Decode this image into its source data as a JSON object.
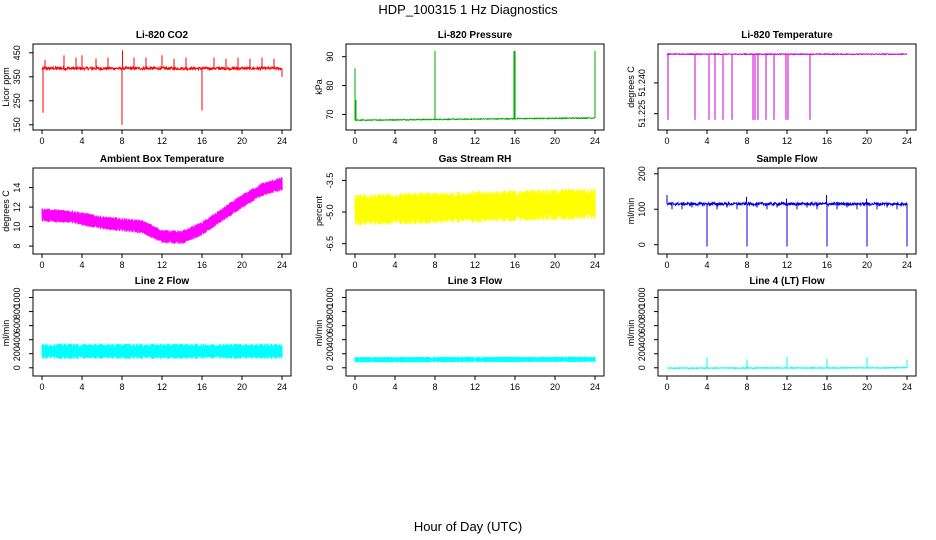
{
  "title": "HDP_100315  1 Hz Diagnostics",
  "xlabel": "Hour of Day (UTC)",
  "chart_data": [
    {
      "type": "line",
      "title": "Li-820 CO2",
      "ylabel": "Licor ppm",
      "color": "#ff0000",
      "xlim": [
        0,
        24
      ],
      "ylim": [
        145,
        470
      ],
      "xticks": [
        0,
        4,
        8,
        12,
        16,
        20,
        24
      ],
      "yticks": [
        150,
        250,
        350,
        450
      ],
      "baseline": 385,
      "noise": 6,
      "drift": 0,
      "spikes": [
        [
          0.1,
          200
        ],
        [
          0.3,
          420
        ],
        [
          2.2,
          440
        ],
        [
          3.4,
          430
        ],
        [
          4,
          440
        ],
        [
          5.4,
          425
        ],
        [
          6.6,
          430
        ],
        [
          8,
          150
        ],
        [
          8.05,
          460
        ],
        [
          9.2,
          430
        ],
        [
          10.4,
          430
        ],
        [
          12,
          440
        ],
        [
          13.2,
          425
        ],
        [
          14.4,
          430
        ],
        [
          16,
          210
        ],
        [
          17.2,
          430
        ],
        [
          18.4,
          425
        ],
        [
          19.6,
          430
        ],
        [
          20.8,
          425
        ],
        [
          22,
          430
        ],
        [
          23.2,
          425
        ],
        [
          24,
          350
        ]
      ]
    },
    {
      "type": "line",
      "title": "Li-820 Pressure",
      "ylabel": "kPa",
      "color": "#00aa00",
      "xlim": [
        0,
        24
      ],
      "ylim": [
        66,
        93
      ],
      "xticks": [
        0,
        4,
        8,
        12,
        16,
        20,
        24
      ],
      "yticks": [
        70,
        80,
        90
      ],
      "baseline": 68,
      "noise": 0.15,
      "drift": 0.8,
      "spikes": [
        [
          0,
          86
        ],
        [
          0.1,
          75
        ],
        [
          8,
          92
        ],
        [
          15.9,
          92
        ],
        [
          16,
          92
        ],
        [
          24,
          92
        ]
      ]
    },
    {
      "type": "line",
      "title": "Li-820 Temperature",
      "ylabel": "degrees C",
      "color": "#cc00cc",
      "xlim": [
        0,
        24
      ],
      "ylim": [
        51.219,
        51.257
      ],
      "xticks": [
        0,
        4,
        8,
        12,
        16,
        20,
        24
      ],
      "yticks": [
        51.225,
        51.24
      ],
      "yticklabels": [
        "51.225",
        "51.240"
      ],
      "baseline": 51.254,
      "noise": 0.0002,
      "drift": 0,
      "spikes": [
        [
          0.1,
          51.222
        ],
        [
          2.8,
          51.222
        ],
        [
          4.2,
          51.222
        ],
        [
          4.8,
          51.222
        ],
        [
          5.6,
          51.222
        ],
        [
          6.5,
          51.222
        ],
        [
          8.6,
          51.222
        ],
        [
          8.8,
          51.222
        ],
        [
          9.1,
          51.222
        ],
        [
          9.9,
          51.222
        ],
        [
          10.7,
          51.222
        ],
        [
          11.9,
          51.222
        ],
        [
          12.1,
          51.222
        ],
        [
          14.3,
          51.222
        ]
      ]
    },
    {
      "type": "line",
      "title": "Ambient Box Temperature",
      "ylabel": "degrees C",
      "color": "#ff00ff",
      "xlim": [
        0,
        24
      ],
      "ylim": [
        7.6,
        15.6
      ],
      "xticks": [
        0,
        4,
        8,
        12,
        16,
        20,
        24
      ],
      "yticks": [
        8,
        10,
        12,
        14
      ],
      "envelope": [
        [
          0,
          11.2
        ],
        [
          3,
          11
        ],
        [
          6,
          10.4
        ],
        [
          8,
          10.2
        ],
        [
          10,
          10
        ],
        [
          12,
          9
        ],
        [
          14,
          8.9
        ],
        [
          16,
          9.8
        ],
        [
          18,
          11.2
        ],
        [
          20,
          12.6
        ],
        [
          22,
          13.8
        ],
        [
          24,
          14.4
        ]
      ],
      "noise": 1.4
    },
    {
      "type": "line",
      "title": "Gas Stream RH",
      "ylabel": "percent",
      "color": "#ffff00",
      "xlim": [
        0,
        24
      ],
      "ylim": [
        -6.8,
        -3.1
      ],
      "xticks": [
        0,
        4,
        8,
        12,
        16,
        20,
        24
      ],
      "yticks": [
        -6.5,
        -5,
        -3.5
      ],
      "yticklabels": [
        "-6.5",
        "-5.0",
        "-3.5"
      ],
      "envelope": [
        [
          0,
          -4.9
        ],
        [
          24,
          -4.6
        ]
      ],
      "noise": 1.5
    },
    {
      "type": "line",
      "title": "Sample Flow",
      "ylabel": "ml/min",
      "color": "#0000dd",
      "xlim": [
        0,
        24
      ],
      "ylim": [
        -15,
        205
      ],
      "xticks": [
        0,
        4,
        8,
        12,
        16,
        20,
        24
      ],
      "yticks": [
        0,
        100,
        200
      ],
      "baseline": 115,
      "noise": 4,
      "drift": 0,
      "spikes": [
        [
          0,
          140
        ],
        [
          0.5,
          100
        ],
        [
          1.5,
          100
        ],
        [
          2.5,
          105
        ],
        [
          4,
          -5
        ],
        [
          5,
          100
        ],
        [
          6,
          105
        ],
        [
          7,
          100
        ],
        [
          8,
          -5
        ],
        [
          7.95,
          135
        ],
        [
          9,
          105
        ],
        [
          10,
          100
        ],
        [
          11,
          105
        ],
        [
          12,
          -5
        ],
        [
          11.95,
          130
        ],
        [
          13,
          100
        ],
        [
          14,
          105
        ],
        [
          15,
          100
        ],
        [
          16,
          -5
        ],
        [
          15.95,
          140
        ],
        [
          17,
          100
        ],
        [
          18,
          105
        ],
        [
          19,
          100
        ],
        [
          20,
          -5
        ],
        [
          19.95,
          130
        ],
        [
          21,
          100
        ],
        [
          22,
          105
        ],
        [
          23,
          100
        ],
        [
          24,
          -5
        ]
      ]
    },
    {
      "type": "line",
      "title": "Line 2 Flow",
      "ylabel": "ml/min",
      "color": "#00ffff",
      "xlim": [
        0,
        24
      ],
      "ylim": [
        -60,
        1050
      ],
      "xticks": [
        0,
        4,
        8,
        12,
        16,
        20,
        24
      ],
      "yticks": [
        0,
        200,
        400,
        600,
        800,
        1000
      ],
      "envelope": [
        [
          0,
          235
        ],
        [
          24,
          235
        ]
      ],
      "noise": 220,
      "gaps": [
        4,
        8,
        12,
        16,
        20
      ]
    },
    {
      "type": "line",
      "title": "Line 3 Flow",
      "ylabel": "ml/min",
      "color": "#00ffff",
      "xlim": [
        0,
        24
      ],
      "ylim": [
        -60,
        1050
      ],
      "xticks": [
        0,
        4,
        8,
        12,
        16,
        20,
        24
      ],
      "yticks": [
        0,
        200,
        400,
        600,
        800,
        1000
      ],
      "envelope": [
        [
          0,
          115
        ],
        [
          24,
          120
        ]
      ],
      "noise": 80,
      "gaps": [
        4,
        8,
        12,
        16,
        20
      ]
    },
    {
      "type": "line",
      "title": "Line 4 (LT) Flow",
      "ylabel": "ml/min",
      "color": "#00ffff",
      "xlim": [
        0,
        24
      ],
      "ylim": [
        -60,
        1050
      ],
      "xticks": [
        0,
        4,
        8,
        12,
        16,
        20,
        24
      ],
      "yticks": [
        0,
        200,
        400,
        600,
        800,
        1000
      ],
      "baseline": -5,
      "noise": 6,
      "drift": 5,
      "spikes": [
        [
          4,
          150
        ],
        [
          8,
          120
        ],
        [
          12,
          155
        ],
        [
          16,
          130
        ],
        [
          20,
          150
        ],
        [
          24,
          110
        ]
      ]
    }
  ]
}
